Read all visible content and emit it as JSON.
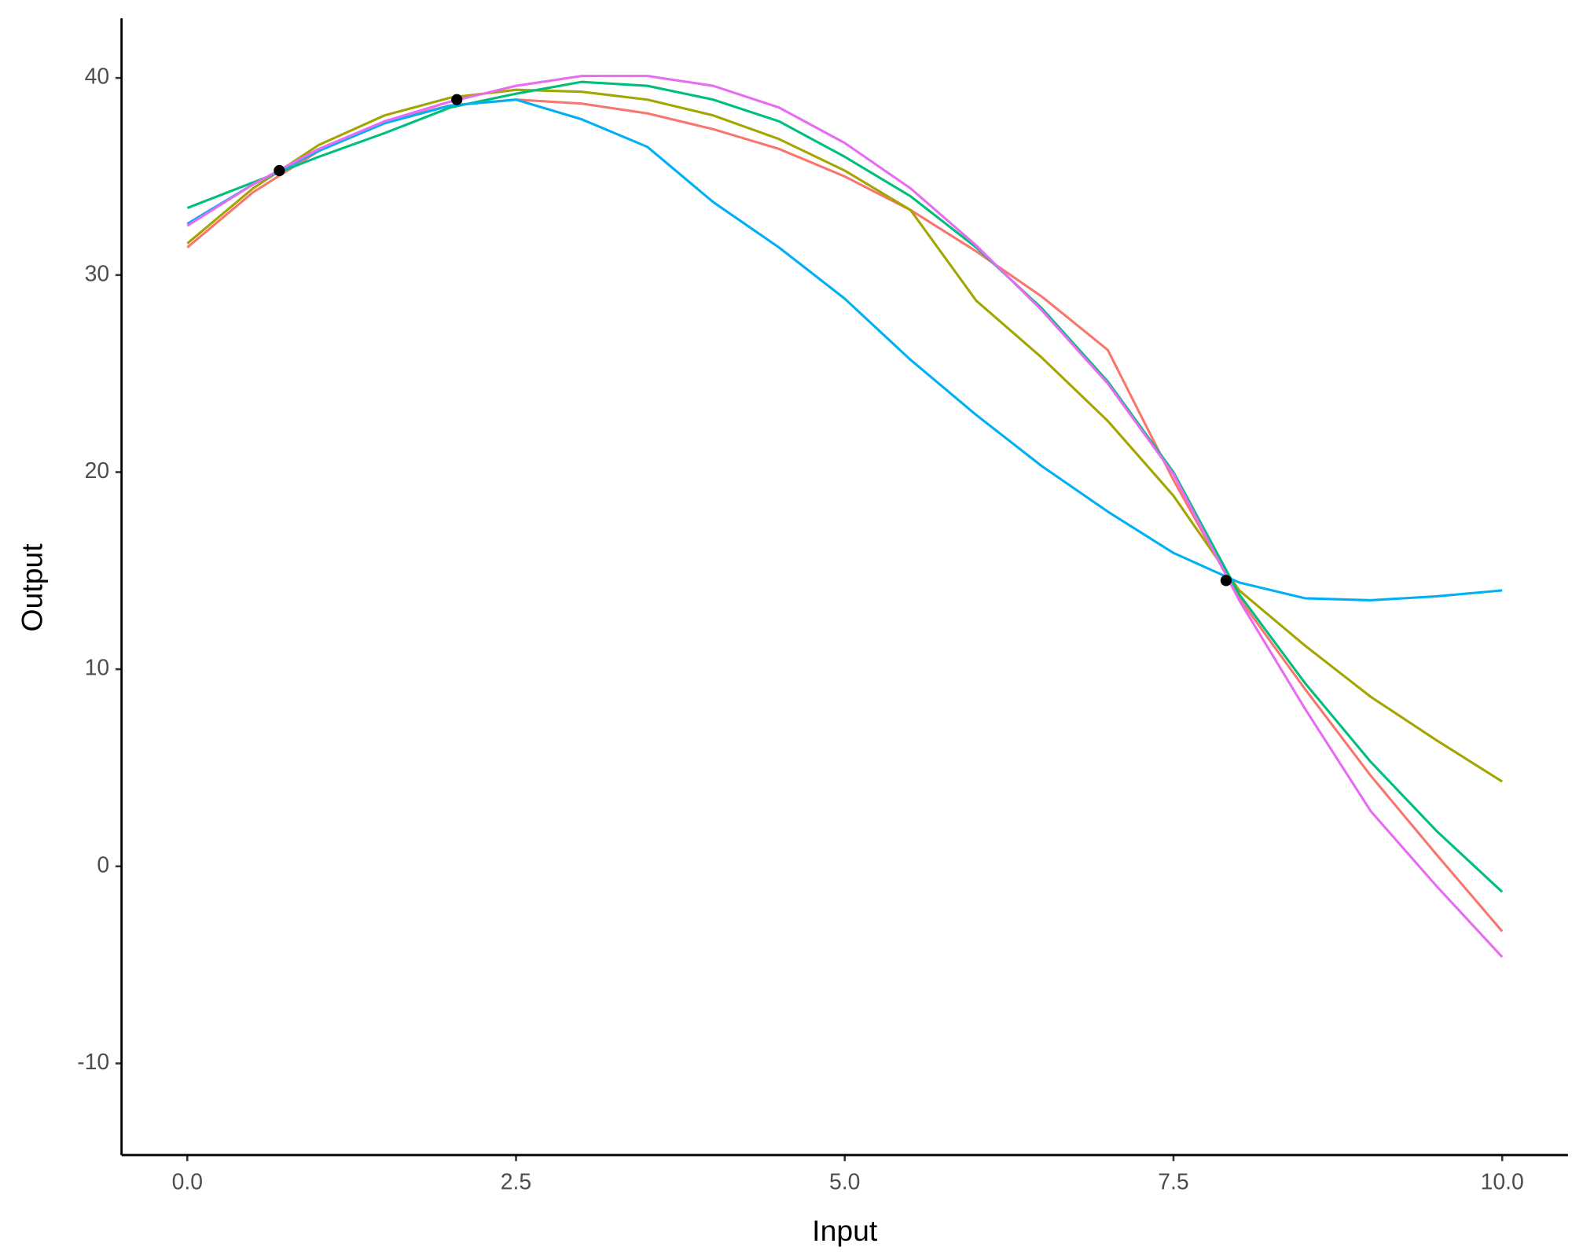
{
  "chart_data": {
    "type": "line",
    "x_label": "Input",
    "y_label": "Output",
    "x": [
      0,
      0.5,
      1,
      1.5,
      2,
      2.5,
      3,
      3.5,
      4,
      4.5,
      5,
      5.5,
      6,
      6.5,
      7,
      7.5,
      8,
      8.5,
      9,
      9.5,
      10
    ],
    "series": [
      {
        "color": "#F8766D",
        "values": [
          31.4,
          34.2,
          36.3,
          37.8,
          38.6,
          38.9,
          38.7,
          38.2,
          37.4,
          36.4,
          35.0,
          33.3,
          31.2,
          28.9,
          26.2,
          19.6,
          13.6,
          9.0,
          4.6,
          0.6,
          -3.3
        ]
      },
      {
        "color": "#A3A500",
        "values": [
          31.6,
          34.4,
          36.6,
          38.1,
          39.0,
          39.4,
          39.3,
          38.9,
          38.1,
          36.9,
          35.3,
          33.3,
          28.7,
          25.8,
          22.6,
          18.8,
          14.0,
          11.2,
          8.6,
          6.4,
          4.3
        ]
      },
      {
        "color": "#00BF7D",
        "values": [
          33.4,
          34.7,
          36.0,
          37.2,
          38.5,
          39.2,
          39.8,
          39.6,
          38.9,
          37.8,
          36.0,
          34.0,
          31.4,
          28.3,
          24.6,
          20.0,
          13.8,
          9.3,
          5.3,
          1.8,
          -1.3
        ]
      },
      {
        "color": "#00B0F6",
        "values": [
          32.6,
          34.6,
          36.3,
          37.7,
          38.6,
          38.9,
          37.9,
          36.5,
          33.7,
          31.4,
          28.8,
          25.7,
          22.9,
          20.3,
          18.0,
          15.9,
          14.4,
          13.6,
          13.5,
          13.7,
          14.0
        ]
      },
      {
        "color": "#E76BF3",
        "values": [
          32.5,
          34.6,
          36.4,
          37.8,
          38.8,
          39.6,
          40.1,
          40.1,
          39.6,
          38.5,
          36.7,
          34.4,
          31.5,
          28.2,
          24.5,
          19.9,
          13.5,
          8.0,
          2.8,
          -1.0,
          -4.6
        ]
      }
    ],
    "points": {
      "color": "#000000",
      "x": [
        0.7,
        2.05,
        7.9
      ],
      "y": [
        35.3,
        38.9,
        14.5
      ]
    },
    "xlim": [
      -0.5,
      10.5
    ],
    "ylim": [
      -14.65,
      43.03
    ],
    "xticks": [
      {
        "value": 0,
        "label": "0.0"
      },
      {
        "value": 2.5,
        "label": "2.5"
      },
      {
        "value": 5,
        "label": "5.0"
      },
      {
        "value": 7.5,
        "label": "7.5"
      },
      {
        "value": 10,
        "label": "10.0"
      }
    ],
    "yticks": [
      -10,
      0,
      10,
      20,
      30,
      40
    ],
    "grid": false
  }
}
